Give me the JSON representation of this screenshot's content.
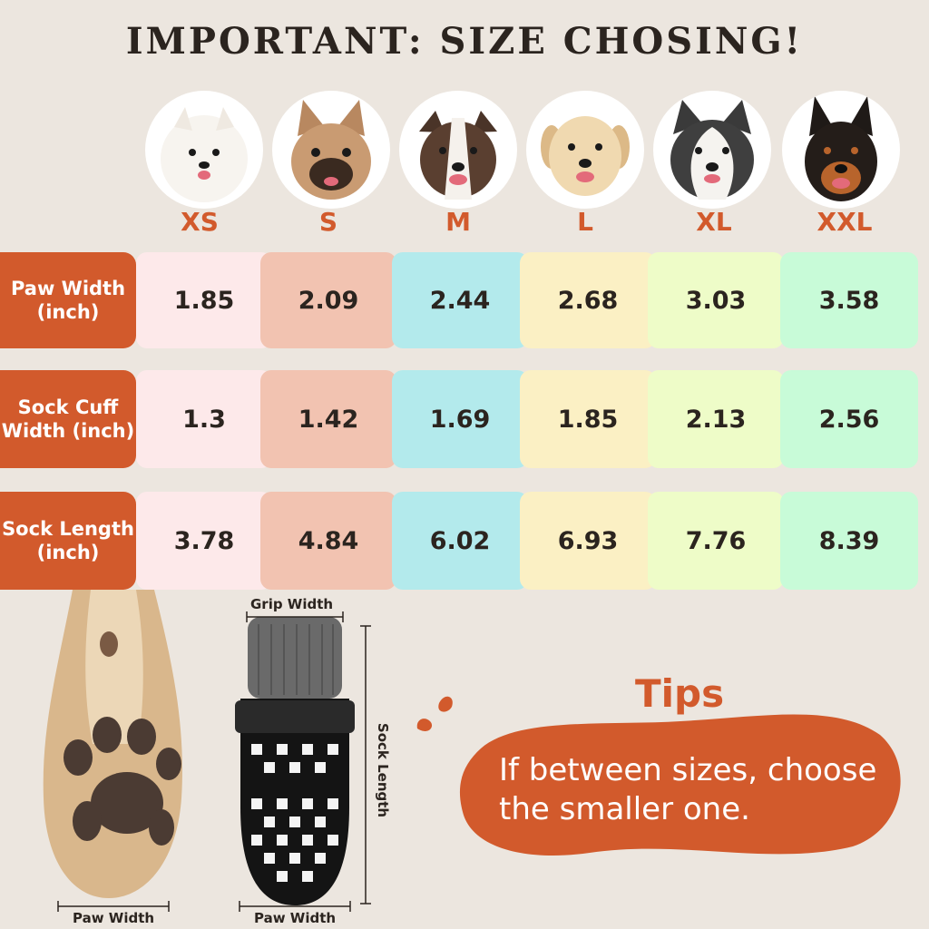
{
  "title": "IMPORTANT: SIZE CHOSING!",
  "sizes": [
    "XS",
    "S",
    "M",
    "L",
    "XL",
    "XXL"
  ],
  "rows": [
    {
      "label": "Paw Width (inch)",
      "values": [
        "1.85",
        "2.09",
        "2.44",
        "2.68",
        "3.03",
        "3.58"
      ]
    },
    {
      "label": "Sock Cuff Width (inch)",
      "values": [
        "1.3",
        "1.42",
        "1.69",
        "1.85",
        "2.13",
        "2.56"
      ]
    },
    {
      "label": "Sock Length (inch)",
      "values": [
        "3.78",
        "4.84",
        "6.02",
        "6.93",
        "7.76",
        "8.39"
      ]
    }
  ],
  "column_colors": [
    "#fde9ea",
    "#f2c3b1",
    "#b3eaec",
    "#fbf0c4",
    "#eefcc8",
    "#c8fbd8"
  ],
  "accent_color": "#d25a2c",
  "measure_labels": {
    "grip_width": "Grip Width",
    "sock_length": "Sock Length",
    "paw_width_left": "Paw Width",
    "paw_width_right": "Paw Width"
  },
  "tips": {
    "title": "Tips",
    "text": "If between sizes, choose the smaller one."
  },
  "dog_icons": [
    "pomeranian-icon",
    "french-bulldog-icon",
    "pitbull-icon",
    "labrador-icon",
    "husky-icon",
    "doberman-icon"
  ]
}
